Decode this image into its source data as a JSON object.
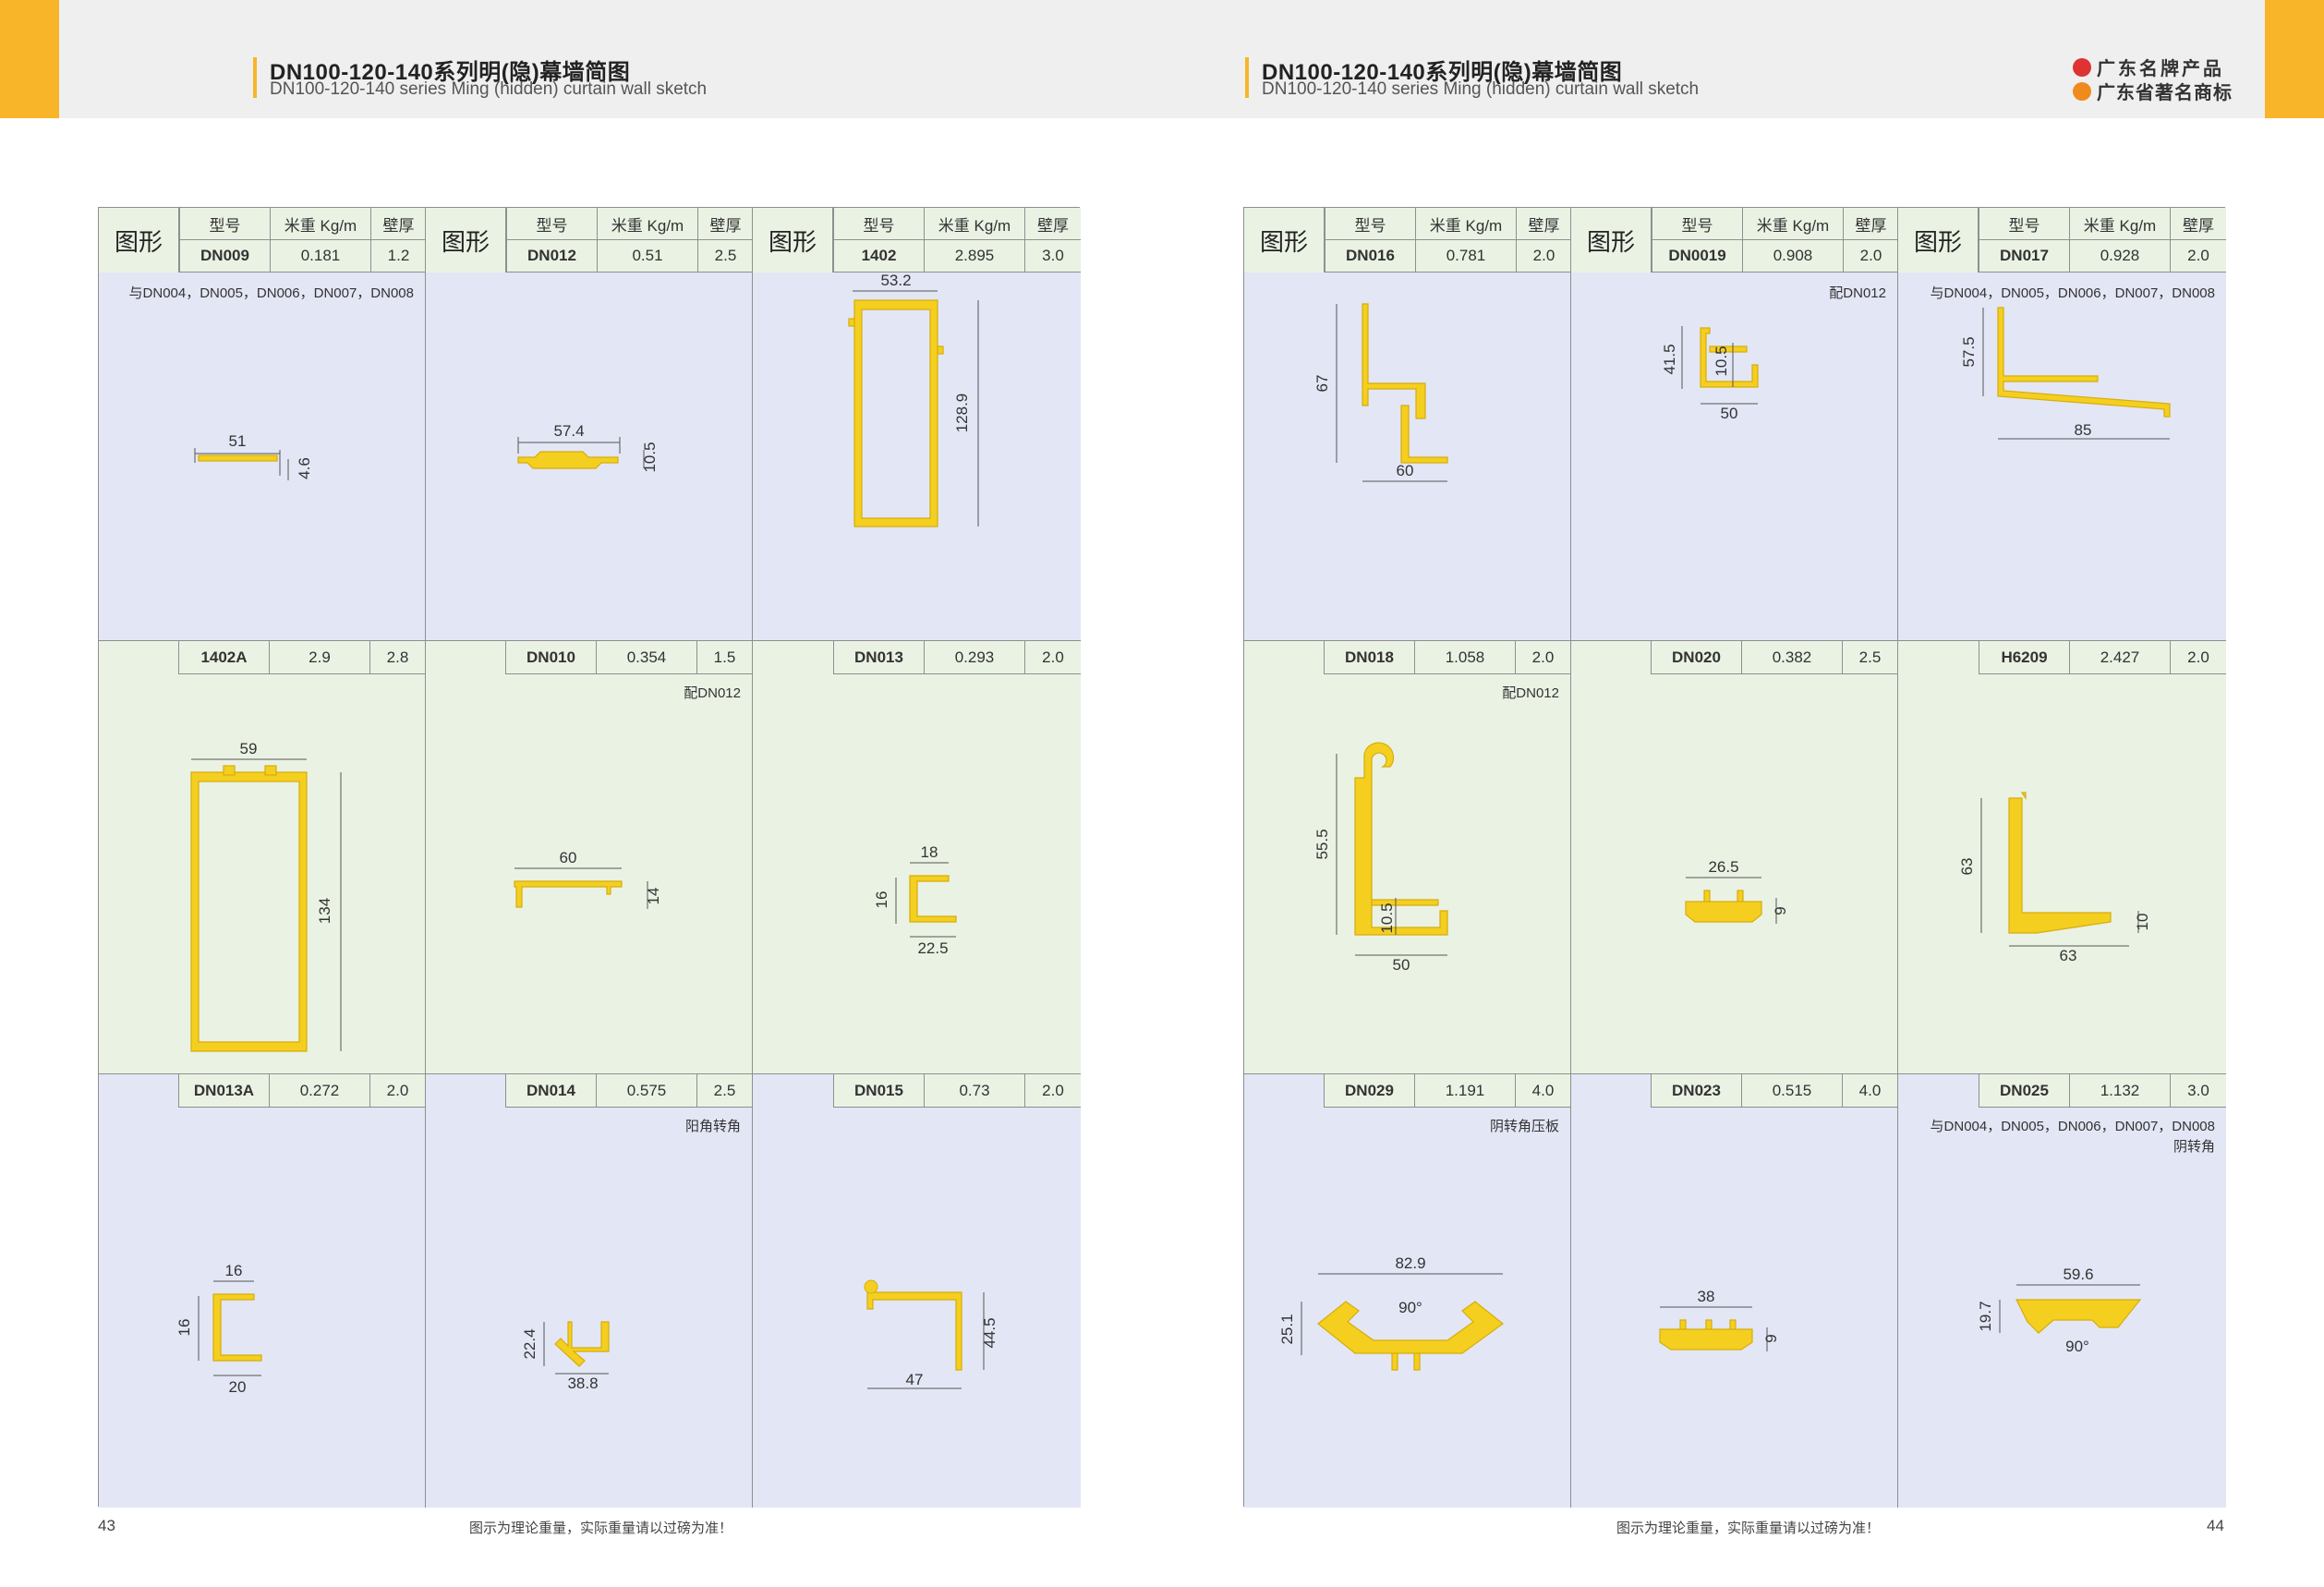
{
  "header": {
    "title_left": "DN100-120-140系列明(隐)幕墙简图",
    "subtitle_left": "DN100-120-140 series Ming (hidden) curtain wall sketch",
    "title_right": "DN100-120-140系列明(隐)幕墙简图",
    "subtitle_right": "DN100-120-140 series Ming (hidden) curtain wall sketch",
    "brand_line1": "广东名牌产品",
    "brand_line2": "广东省著名商标",
    "colors": {
      "accent": "#f8b52a",
      "profile": "#f5cf1f",
      "blue_bg": "#e3e6f5",
      "green_bg": "#eaf2e4"
    }
  },
  "table_header": {
    "shape": "图形",
    "model": "型号",
    "weight": "米重 Kg/m",
    "thickness": "壁厚"
  },
  "left_page": {
    "page_number": "43",
    "footnote": "图示为理论重量，实际重量请以过磅为准！",
    "cells": [
      {
        "model": "DN009",
        "weight": "0.181",
        "thickness": "1.2",
        "note": "与DN004，DN005，DN006，DN007，DN008",
        "dims": [
          "51",
          "4.6"
        ]
      },
      {
        "model": "DN012",
        "weight": "0.51",
        "thickness": "2.5",
        "note": "",
        "dims": [
          "57.4",
          "10.5"
        ]
      },
      {
        "model": "1402",
        "weight": "2.895",
        "thickness": "3.0",
        "note": "",
        "dims": [
          "53.2",
          "128.9"
        ]
      },
      {
        "model": "1402A",
        "weight": "2.9",
        "thickness": "2.8",
        "note": "",
        "dims": [
          "59",
          "134"
        ]
      },
      {
        "model": "DN010",
        "weight": "0.354",
        "thickness": "1.5",
        "note": "配DN012",
        "dims": [
          "60",
          "14"
        ]
      },
      {
        "model": "DN013",
        "weight": "0.293",
        "thickness": "2.0",
        "note": "",
        "dims": [
          "18",
          "16",
          "22.5"
        ]
      },
      {
        "model": "DN013A",
        "weight": "0.272",
        "thickness": "2.0",
        "note": "",
        "dims": [
          "16",
          "16",
          "20"
        ]
      },
      {
        "model": "DN014",
        "weight": "0.575",
        "thickness": "2.5",
        "note": "阳角转角",
        "dims": [
          "22.4",
          "38.8"
        ]
      },
      {
        "model": "DN015",
        "weight": "0.73",
        "thickness": "2.0",
        "note": "",
        "dims": [
          "44.5",
          "47"
        ]
      }
    ]
  },
  "right_page": {
    "page_number": "44",
    "footnote": "图示为理论重量，实际重量请以过磅为准！",
    "cells": [
      {
        "model": "DN016",
        "weight": "0.781",
        "thickness": "2.0",
        "note": "",
        "dims": [
          "67",
          "60"
        ]
      },
      {
        "model": "DN0019",
        "weight": "0.908",
        "thickness": "2.0",
        "note": "配DN012",
        "dims": [
          "41.5",
          "10.5",
          "50"
        ]
      },
      {
        "model": "DN017",
        "weight": "0.928",
        "thickness": "2.0",
        "note": "与DN004，DN005，DN006，DN007，DN008",
        "dims": [
          "57.5",
          "85"
        ]
      },
      {
        "model": "DN018",
        "weight": "1.058",
        "thickness": "2.0",
        "note": "配DN012",
        "dims": [
          "55.5",
          "10.5",
          "50"
        ]
      },
      {
        "model": "DN020",
        "weight": "0.382",
        "thickness": "2.5",
        "note": "",
        "dims": [
          "26.5",
          "9"
        ]
      },
      {
        "model": "H6209",
        "weight": "2.427",
        "thickness": "2.0",
        "note": "",
        "dims": [
          "63",
          "63",
          "10"
        ]
      },
      {
        "model": "DN029",
        "weight": "1.191",
        "thickness": "4.0",
        "note": "阴转角压板",
        "dims": [
          "82.9",
          "90°",
          "25.1"
        ]
      },
      {
        "model": "DN023",
        "weight": "0.515",
        "thickness": "4.0",
        "note": "",
        "dims": [
          "38",
          "9"
        ]
      },
      {
        "model": "DN025",
        "weight": "1.132",
        "thickness": "3.0",
        "note": "与DN004，DN005，DN006，DN007，DN008\n阴转角",
        "dims": [
          "59.6",
          "19.7",
          "90°"
        ]
      }
    ]
  }
}
